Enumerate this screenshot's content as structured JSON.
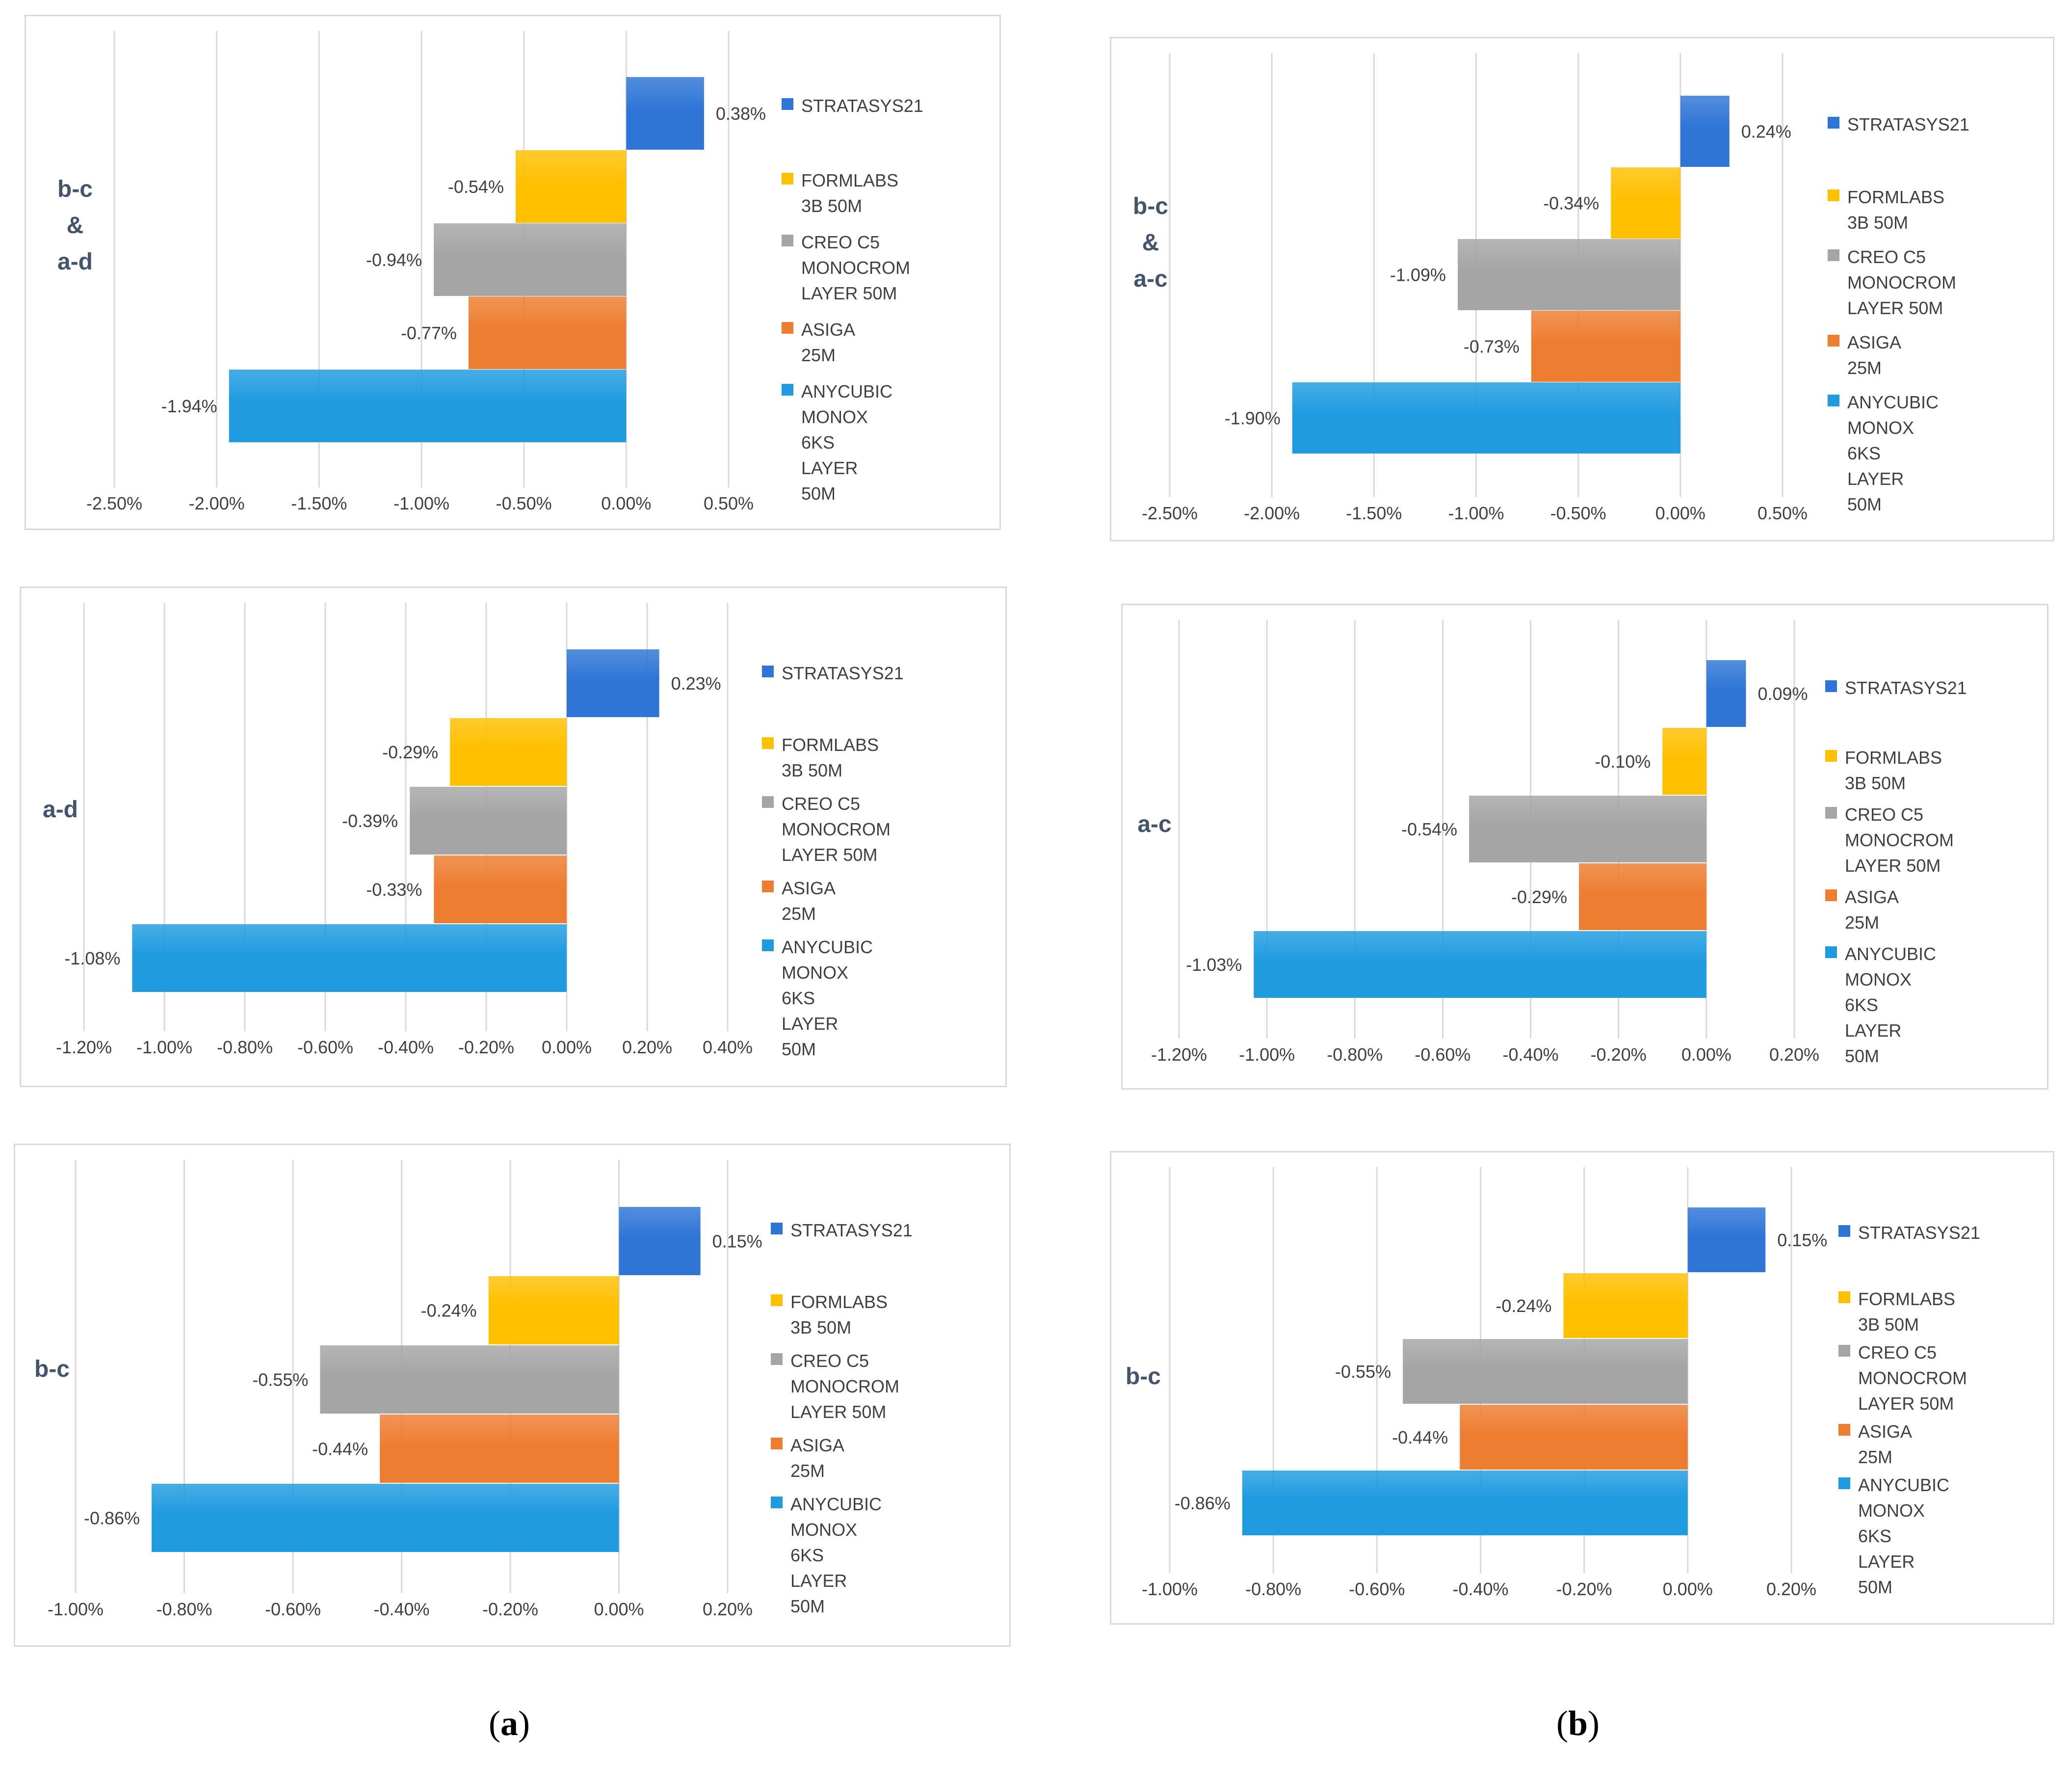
{
  "series_names": [
    "STRATASYS21",
    "FORMLABS 3B 50M",
    "CREO C5 MONOCROM LAYER 50M",
    "ASIGA 25M",
    "ANYCUBIC MONOX 6KS LAYER 50M"
  ],
  "colors": {
    "stratasys": "#2e75d6",
    "formlabs": "#ffc000",
    "creo": "#a5a5a5",
    "asiga": "#ed7d31",
    "anycubic": "#1f9be0",
    "axis_text": "#404040",
    "label_text": "#44546a",
    "grid": "#d9d9d9"
  },
  "captions": {
    "left": "a",
    "right": "b"
  },
  "chart_data": [
    {
      "type": "bar",
      "orientation": "horizontal",
      "id": "a-top",
      "side_label": "b-c\n&\na-d",
      "categories": [
        "STRATASYS21",
        "FORMLABS 3B 50M",
        "CREO C5 MONOCROM LAYER 50M",
        "ASIGA 25M",
        "ANYCUBIC MONOX 6KS LAYER 50M"
      ],
      "legend_labels": [
        "STRATASYS21",
        "FORMLABS 3B 50M",
        "CREO C5 MONOCROM\nLAYER 50M",
        "ASIGA 25M",
        "ANYCUBIC MONOX\n6KS LAYER 50M"
      ],
      "values": [
        0.38,
        -0.54,
        -0.94,
        -0.77,
        -1.94
      ],
      "value_labels": [
        "0.38%",
        "-0.54%",
        "-0.94%",
        "-0.77%",
        "-1.94%"
      ],
      "xlim": [
        -2.5,
        0.5
      ],
      "ticks": [
        -2.5,
        -2.0,
        -1.5,
        -1.0,
        -0.5,
        0.0,
        0.5
      ],
      "tick_labels": [
        "-2.50%",
        "-2.00%",
        "-1.50%",
        "-1.00%",
        "-0.50%",
        "0.00%",
        "0.50%"
      ],
      "grid": true
    },
    {
      "type": "bar",
      "orientation": "horizontal",
      "id": "a-mid",
      "side_label": "a-d",
      "categories": [
        "STRATASYS21",
        "FORMLABS 3B 50M",
        "CREO C5 MONOCROM LAYER 50M",
        "ASIGA 25M",
        "ANYCUBIC MONOX 6KS LAYER 50M"
      ],
      "legend_labels": [
        "STRATASYS21",
        "FORMLABS 3B 50M",
        "CREO C5 MONOCROM\nLAYER 50M",
        "ASIGA 25M",
        "ANYCUBIC MONOX 6KS\nLAYER 50M"
      ],
      "values": [
        0.23,
        -0.29,
        -0.39,
        -0.33,
        -1.08
      ],
      "value_labels": [
        "0.23%",
        "-0.29%",
        "-0.39%",
        "-0.33%",
        "-1.08%"
      ],
      "xlim": [
        -1.2,
        0.4
      ],
      "ticks": [
        -1.2,
        -1.0,
        -0.8,
        -0.6,
        -0.4,
        -0.2,
        0.0,
        0.2,
        0.4
      ],
      "tick_labels": [
        "-1.20%",
        "-1.00%",
        "-0.80%",
        "-0.60%",
        "-0.40%",
        "-0.20%",
        "0.00%",
        "0.20%",
        "0.40%"
      ],
      "grid": true
    },
    {
      "type": "bar",
      "orientation": "horizontal",
      "id": "a-bot",
      "side_label": "b-c",
      "categories": [
        "STRATASYS21",
        "FORMLABS 3B 50M",
        "CREO C5 MONOCROM LAYER 50M",
        "ASIGA 25M",
        "ANYCUBIC MONOX 6KS LAYER 50M"
      ],
      "legend_labels": [
        "STRATASYS21",
        "FORMLABS 3B 50M",
        "CREO C5 MONOCROM\nLAYER 50M",
        "ASIGA 25M",
        "ANYCUBIC MONOX 6KS\nLAYER 50M"
      ],
      "values": [
        0.15,
        -0.24,
        -0.55,
        -0.44,
        -0.86
      ],
      "value_labels": [
        "0.15%",
        "-0.24%",
        "-0.55%",
        "-0.44%",
        "-0.86%"
      ],
      "xlim": [
        -1.0,
        0.2
      ],
      "ticks": [
        -1.0,
        -0.8,
        -0.6,
        -0.4,
        -0.2,
        0.0,
        0.2
      ],
      "tick_labels": [
        "-1.00%",
        "-0.80%",
        "-0.60%",
        "-0.40%",
        "-0.20%",
        "0.00%",
        "0.20%"
      ],
      "grid": true
    },
    {
      "type": "bar",
      "orientation": "horizontal",
      "id": "b-top",
      "side_label": "b-c\n&\na-c",
      "categories": [
        "STRATASYS21",
        "FORMLABS 3B 50M",
        "CREO C5 MONOCROM LAYER 50M",
        "ASIGA 25M",
        "ANYCUBIC MONOX 6KS LAYER 50M"
      ],
      "legend_labels": [
        "STRATASYS21",
        "FORMLABS 3B 50M",
        "CREO C5 MONOCROM\nLAYER 50M",
        "ASIGA 25M",
        "ANYCUBIC MONOX 6KS\nLAYER 50M"
      ],
      "values": [
        0.24,
        -0.34,
        -1.09,
        -0.73,
        -1.9
      ],
      "value_labels": [
        "0.24%",
        "-0.34%",
        "-1.09%",
        "-0.73%",
        "-1.90%"
      ],
      "xlim": [
        -2.5,
        0.5
      ],
      "ticks": [
        -2.5,
        -2.0,
        -1.5,
        -1.0,
        -0.5,
        0.0,
        0.5
      ],
      "tick_labels": [
        "-2.50%",
        "-2.00%",
        "-1.50%",
        "-1.00%",
        "-0.50%",
        "0.00%",
        "0.50%"
      ],
      "grid": true
    },
    {
      "type": "bar",
      "orientation": "horizontal",
      "id": "b-mid",
      "side_label": "a-c",
      "categories": [
        "STRATASYS21",
        "FORMLABS 3B 50M",
        "CREO C5 MONOCROM LAYER 50M",
        "ASIGA 25M",
        "ANYCUBIC MONOX 6KS LAYER 50M"
      ],
      "legend_labels": [
        "STRATASYS21",
        "FORMLABS 3B 50M",
        "CREO C5 MONOCROM\nLAYER 50M",
        "ASIGA 25M",
        "ANYCUBIC MONOX\n6KS LAYER 50M"
      ],
      "values": [
        0.09,
        -0.1,
        -0.54,
        -0.29,
        -1.03
      ],
      "value_labels": [
        "0.09%",
        "-0.10%",
        "-0.54%",
        "-0.29%",
        "-1.03%"
      ],
      "xlim": [
        -1.2,
        0.2
      ],
      "ticks": [
        -1.2,
        -1.0,
        -0.8,
        -0.6,
        -0.4,
        -0.2,
        0.0,
        0.2
      ],
      "tick_labels": [
        "-1.20%",
        "-1.00%",
        "-0.80%",
        "-0.60%",
        "-0.40%",
        "-0.20%",
        "0.00%",
        "0.20%"
      ],
      "grid": true
    },
    {
      "type": "bar",
      "orientation": "horizontal",
      "id": "b-bot",
      "side_label": "b-c",
      "categories": [
        "STRATASYS21",
        "FORMLABS 3B 50M",
        "CREO C5 MONOCROM LAYER 50M",
        "ASIGA 25M",
        "ANYCUBIC MONOX 6KS LAYER 50M"
      ],
      "legend_labels": [
        "STRATASYS21",
        "FORMLABS 3B 50M",
        "CREO C5 MONOCROM\nLAYER 50M",
        "ASIGA 25M",
        "ANYCUBIC MONOX 6KS\nLAYER 50M"
      ],
      "values": [
        0.15,
        -0.24,
        -0.55,
        -0.44,
        -0.86
      ],
      "value_labels": [
        "0.15%",
        "-0.24%",
        "-0.55%",
        "-0.44%",
        "-0.86%"
      ],
      "xlim": [
        -1.0,
        0.2
      ],
      "ticks": [
        -1.0,
        -0.8,
        -0.6,
        -0.4,
        -0.2,
        0.0,
        0.2
      ],
      "tick_labels": [
        "-1.00%",
        "-0.80%",
        "-0.60%",
        "-0.40%",
        "-0.20%",
        "0.00%",
        "0.20%"
      ],
      "grid": true
    }
  ]
}
